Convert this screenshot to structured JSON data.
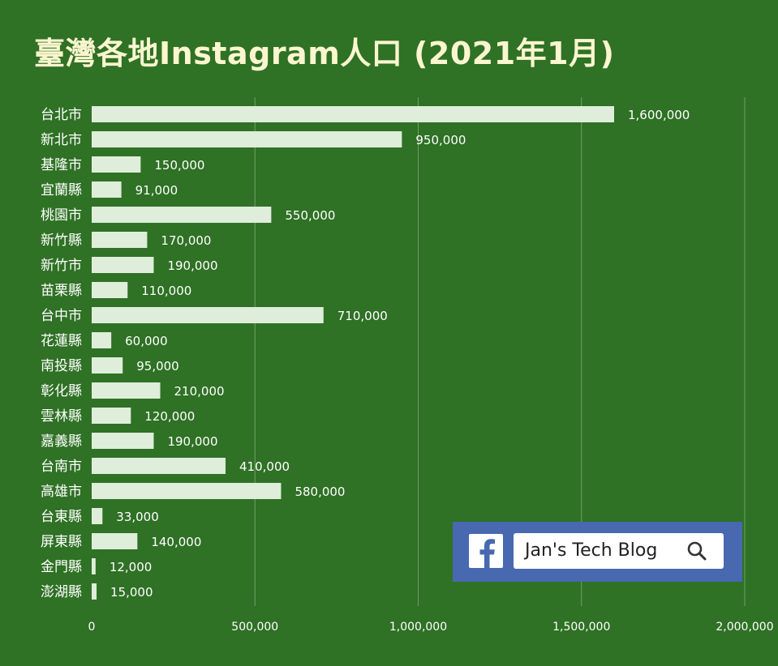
{
  "chart_data": {
    "type": "bar",
    "orientation": "horizontal",
    "title": "臺灣各地Instagram人口 (2021年1月)",
    "categories": [
      "台北市",
      "新北市",
      "基隆市",
      "宜蘭縣",
      "桃園市",
      "新竹縣",
      "新竹市",
      "苗栗縣",
      "台中市",
      "花蓮縣",
      "南投縣",
      "彰化縣",
      "雲林縣",
      "嘉義縣",
      "台南市",
      "高雄市",
      "台東縣",
      "屏東縣",
      "金門縣",
      "澎湖縣"
    ],
    "values": [
      1600000,
      950000,
      150000,
      91000,
      550000,
      170000,
      190000,
      110000,
      710000,
      60000,
      95000,
      210000,
      120000,
      190000,
      410000,
      580000,
      33000,
      140000,
      12000,
      15000
    ],
    "value_labels": [
      "1,600,000",
      "950,000",
      "150,000",
      "91,000",
      "550,000",
      "170,000",
      "190,000",
      "110,000",
      "710,000",
      "60,000",
      "95,000",
      "210,000",
      "120,000",
      "190,000",
      "410,000",
      "580,000",
      "33,000",
      "140,000",
      "12,000",
      "15,000"
    ],
    "xlim": [
      0,
      2000000
    ],
    "x_ticks": [
      0,
      500000,
      1000000,
      1500000,
      2000000
    ],
    "x_tick_labels": [
      "0",
      "500,000",
      "1,000,000",
      "1,500,000",
      "2,000,000"
    ],
    "grid": true,
    "xlabel": "",
    "ylabel": ""
  },
  "colors": {
    "background": "#2f7125",
    "bar": "#dfeddb",
    "title": "#fbf6cf",
    "text": "#ffffff",
    "gridline": "#8fb386",
    "facebook_blue": "#4868b0"
  },
  "watermark": {
    "icon": "facebook-icon",
    "search_icon": "search-icon",
    "text": "Jan's Tech Blog"
  }
}
